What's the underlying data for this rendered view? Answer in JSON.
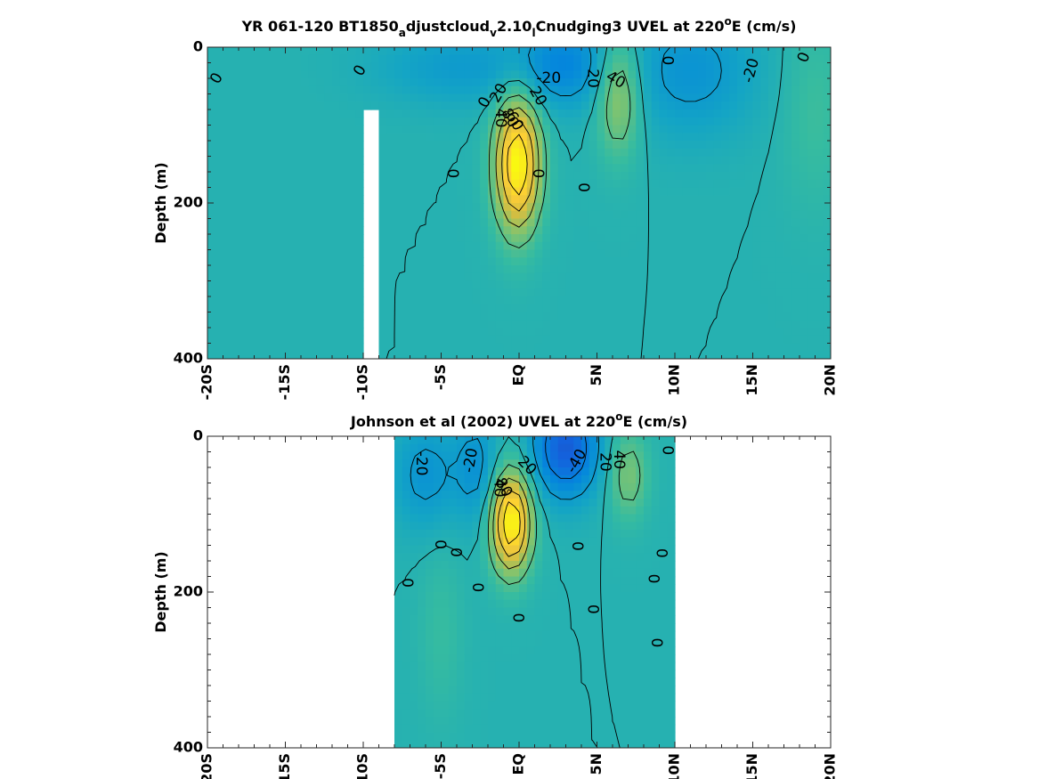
{
  "chart_data": [
    {
      "type": "heatmap",
      "title": "YR 061-120 BT1850_adjustcloud_v2.10_lCnudging3 UVEL at 220ºE (cm/s)",
      "title_parts": {
        "prefix": "YR 061-120 BT1850",
        "sub1": "a",
        "mid1": "djustcloud",
        "sub2": "v",
        "mid2": "2.10",
        "sub3": "l",
        "suffix_a": "Cnudging3 UVEL at 220",
        "sup": "o",
        "suffix_b": "E (cm/s)"
      },
      "xlabel": "",
      "ylabel": "Depth (m)",
      "x_ticks": [
        "-20S",
        "-15S",
        "-10S",
        "-5S",
        "EQ",
        "5N",
        "10N",
        "15N",
        "20N"
      ],
      "y_ticks": [
        "0",
        "200",
        "400"
      ],
      "xlim": [
        -20,
        20
      ],
      "ylim": [
        400,
        0
      ],
      "grid": false,
      "colormap": "parula",
      "color_range_cm_s": [
        -80,
        100
      ],
      "background_value": 0,
      "masked_region": {
        "lat": [
          -10,
          -9.1
        ],
        "depth": [
          80,
          400
        ]
      },
      "features": [
        {
          "name": "core-eq",
          "lat": -0.1,
          "depth": 150,
          "value": 100,
          "sigma_lat": 1.0,
          "sigma_depth": 60
        },
        {
          "name": "core-nec",
          "lat": 6.4,
          "depth": 60,
          "value": 42,
          "sigma_lat": 1.0,
          "sigma_depth": 55
        },
        {
          "name": "west-south",
          "lat": -3.5,
          "depth": 25,
          "value": -20,
          "sigma_lat": 4.0,
          "sigma_depth": 35
        },
        {
          "name": "west-north",
          "lat": 3.0,
          "depth": 20,
          "value": -30,
          "sigma_lat": 2.0,
          "sigma_depth": 40
        },
        {
          "name": "west-10n",
          "lat": 11.0,
          "depth": 30,
          "value": -25,
          "sigma_lat": 3.0,
          "sigma_depth": 60
        },
        {
          "name": "east-20n",
          "lat": 19.0,
          "depth": 80,
          "value": 12,
          "sigma_lat": 1.5,
          "sigma_depth": 90
        }
      ],
      "contour_labels": [
        {
          "text": "0",
          "lat": -19.4,
          "depth": 40,
          "angle": -60
        },
        {
          "text": "0",
          "lat": -10.2,
          "depth": 30,
          "angle": -60
        },
        {
          "text": "-20",
          "lat": 1.9,
          "depth": 40,
          "angle": 0
        },
        {
          "text": "20",
          "lat": 4.7,
          "depth": 40,
          "angle": 90
        },
        {
          "text": "40",
          "lat": 6.2,
          "depth": 42,
          "angle": 30
        },
        {
          "text": "0",
          "lat": 9.5,
          "depth": 17,
          "angle": 90
        },
        {
          "text": "-20",
          "lat": 14.9,
          "depth": 30,
          "angle": -75
        },
        {
          "text": "0",
          "lat": 18.3,
          "depth": 13,
          "angle": -70
        },
        {
          "text": "0",
          "lat": -2.2,
          "depth": 71,
          "angle": -60
        },
        {
          "text": "20",
          "lat": -1.3,
          "depth": 59,
          "angle": -60
        },
        {
          "text": "20",
          "lat": 1.2,
          "depth": 63,
          "angle": 60
        },
        {
          "text": "40",
          "lat": -1.2,
          "depth": 91,
          "angle": 90
        },
        {
          "text": "80",
          "lat": -0.6,
          "depth": 91,
          "angle": 60
        },
        {
          "text": "60",
          "lat": -0.3,
          "depth": 95,
          "angle": 60
        },
        {
          "text": "0",
          "lat": -4.3,
          "depth": 162,
          "angle": 90
        },
        {
          "text": "0",
          "lat": 1.2,
          "depth": 162,
          "angle": 90
        },
        {
          "text": "0",
          "lat": 4.1,
          "depth": 180,
          "angle": 90
        }
      ]
    },
    {
      "type": "heatmap",
      "title": "Johnson et al (2002) UVEL at 220ºE (cm/s)",
      "title_parts": {
        "prefix": "Johnson et al (2002) UVEL at 220",
        "sup": "o",
        "suffix_b": "E (cm/s)"
      },
      "xlabel": "",
      "ylabel": "Depth (m)",
      "x_ticks": [
        "20S",
        "15S",
        "10S",
        "-5S",
        "EQ",
        "5N",
        "10N",
        "15N",
        "20N"
      ],
      "y_ticks": [
        "0",
        "200",
        "400"
      ],
      "xlim": [
        -20,
        20
      ],
      "ylim": [
        400,
        0
      ],
      "grid": false,
      "colormap": "parula",
      "color_range_cm_s": [
        -80,
        100
      ],
      "data_extent": {
        "lat": [
          -8,
          10
        ],
        "depth": [
          0,
          400
        ]
      },
      "background_value": 0,
      "features": [
        {
          "name": "core-eq",
          "lat": -0.5,
          "depth": 110,
          "value": 100,
          "sigma_lat": 0.9,
          "sigma_depth": 45
        },
        {
          "name": "core-nec",
          "lat": 7.0,
          "depth": 50,
          "value": 30,
          "sigma_lat": 0.9,
          "sigma_depth": 40
        },
        {
          "name": "west-south",
          "lat": -6.0,
          "depth": 50,
          "value": -25,
          "sigma_lat": 1.5,
          "sigma_depth": 50
        },
        {
          "name": "west-sec",
          "lat": -2.7,
          "depth": 40,
          "value": -25,
          "sigma_lat": 1.0,
          "sigma_depth": 50
        },
        {
          "name": "west-north",
          "lat": 3.0,
          "depth": 15,
          "value": -60,
          "sigma_lat": 1.5,
          "sigma_depth": 45
        },
        {
          "name": "deep-south",
          "lat": -5.0,
          "depth": 250,
          "value": 10,
          "sigma_lat": 1.0,
          "sigma_depth": 80
        }
      ],
      "contour_labels": [
        {
          "text": "-20",
          "lat": -6.3,
          "depth": 35,
          "angle": 90
        },
        {
          "text": "-20",
          "lat": -3.1,
          "depth": 31,
          "angle": -80
        },
        {
          "text": "20",
          "lat": 0.5,
          "depth": 38,
          "angle": 45
        },
        {
          "text": "-40",
          "lat": 3.7,
          "depth": 32,
          "angle": -60
        },
        {
          "text": "20",
          "lat": 5.5,
          "depth": 33,
          "angle": 90
        },
        {
          "text": "40",
          "lat": 6.4,
          "depth": 30,
          "angle": 90
        },
        {
          "text": "0",
          "lat": 9.5,
          "depth": 18,
          "angle": 90
        },
        {
          "text": "40",
          "lat": -1.3,
          "depth": 66,
          "angle": 90
        },
        {
          "text": "80",
          "lat": -1.0,
          "depth": 66,
          "angle": 60
        },
        {
          "text": "0",
          "lat": -5.1,
          "depth": 139,
          "angle": 90
        },
        {
          "text": "0",
          "lat": -4.1,
          "depth": 149,
          "angle": 90
        },
        {
          "text": "0",
          "lat": 3.7,
          "depth": 141,
          "angle": 90
        },
        {
          "text": "0",
          "lat": 9.1,
          "depth": 150,
          "angle": 90
        },
        {
          "text": "0",
          "lat": -7.2,
          "depth": 188,
          "angle": 90
        },
        {
          "text": "0",
          "lat": -2.7,
          "depth": 194,
          "angle": 90
        },
        {
          "text": "0",
          "lat": 8.6,
          "depth": 183,
          "angle": 90
        },
        {
          "text": "0",
          "lat": 8.8,
          "depth": 265,
          "angle": 90
        },
        {
          "text": "0",
          "lat": -0.1,
          "depth": 233,
          "angle": 90
        },
        {
          "text": "0",
          "lat": 4.7,
          "depth": 222,
          "angle": 90
        }
      ]
    }
  ],
  "colors": {
    "background": "#ffffff",
    "axis": "#262626",
    "contour": "#000000"
  }
}
